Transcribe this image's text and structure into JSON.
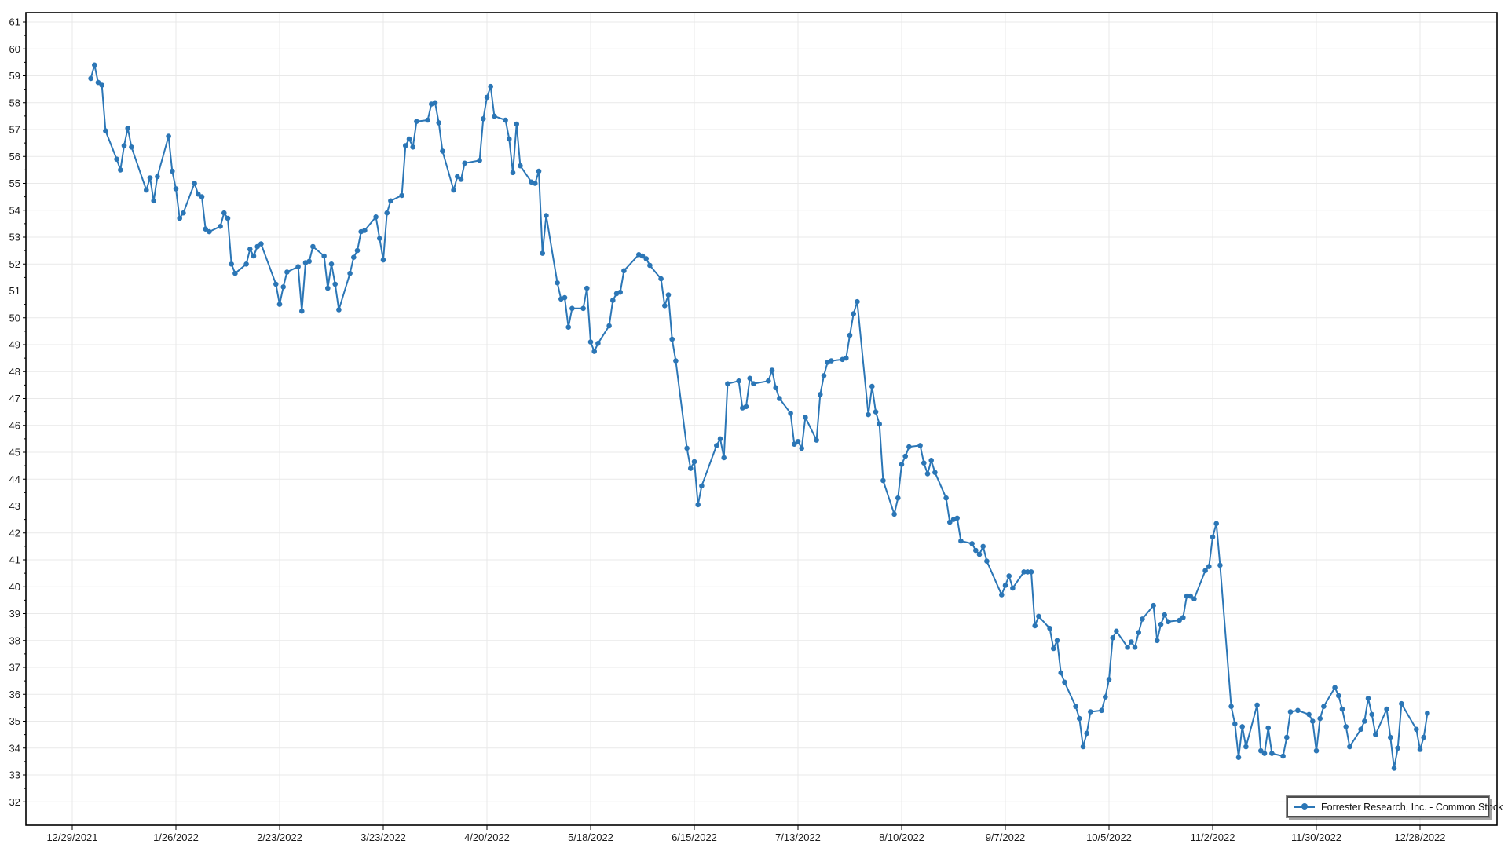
{
  "legend": {
    "label": "Forrester Research, Inc. - Common Stock"
  },
  "colors": {
    "series": "#2b76b6",
    "grid": "#e9e9e9",
    "axis": "#000000",
    "label": "#1a1a1a",
    "background": "#ffffff"
  },
  "chart_data": {
    "type": "line",
    "series": [
      {
        "name": "Forrester Research, Inc. - Common Stock",
        "marker": "circle",
        "color": "#2b76b6",
        "dates": [
          "1/3/2022",
          "1/4/2022",
          "1/5/2022",
          "1/6/2022",
          "1/7/2022",
          "1/10/2022",
          "1/11/2022",
          "1/12/2022",
          "1/13/2022",
          "1/14/2022",
          "1/18/2022",
          "1/19/2022",
          "1/20/2022",
          "1/21/2022",
          "1/24/2022",
          "1/25/2022",
          "1/26/2022",
          "1/27/2022",
          "1/28/2022",
          "1/31/2022",
          "2/1/2022",
          "2/2/2022",
          "2/3/2022",
          "2/4/2022",
          "2/7/2022",
          "2/8/2022",
          "2/9/2022",
          "2/10/2022",
          "2/11/2022",
          "2/14/2022",
          "2/15/2022",
          "2/16/2022",
          "2/17/2022",
          "2/18/2022",
          "2/22/2022",
          "2/23/2022",
          "2/24/2022",
          "2/25/2022",
          "2/28/2022",
          "3/1/2022",
          "3/2/2022",
          "3/3/2022",
          "3/4/2022",
          "3/7/2022",
          "3/8/2022",
          "3/9/2022",
          "3/10/2022",
          "3/11/2022",
          "3/14/2022",
          "3/15/2022",
          "3/16/2022",
          "3/17/2022",
          "3/18/2022",
          "3/21/2022",
          "3/22/2022",
          "3/23/2022",
          "3/24/2022",
          "3/25/2022",
          "3/28/2022",
          "3/29/2022",
          "3/30/2022",
          "3/31/2022",
          "4/1/2022",
          "4/4/2022",
          "4/5/2022",
          "4/6/2022",
          "4/7/2022",
          "4/8/2022",
          "4/11/2022",
          "4/12/2022",
          "4/13/2022",
          "4/14/2022",
          "4/18/2022",
          "4/19/2022",
          "4/20/2022",
          "4/21/2022",
          "4/22/2022",
          "4/25/2022",
          "4/26/2022",
          "4/27/2022",
          "4/28/2022",
          "4/29/2022",
          "5/2/2022",
          "5/3/2022",
          "5/4/2022",
          "5/5/2022",
          "5/6/2022",
          "5/9/2022",
          "5/10/2022",
          "5/11/2022",
          "5/12/2022",
          "5/13/2022",
          "5/16/2022",
          "5/17/2022",
          "5/18/2022",
          "5/19/2022",
          "5/20/2022",
          "5/23/2022",
          "5/24/2022",
          "5/25/2022",
          "5/26/2022",
          "5/27/2022",
          "5/31/2022",
          "6/1/2022",
          "6/2/2022",
          "6/3/2022",
          "6/6/2022",
          "6/7/2022",
          "6/8/2022",
          "6/9/2022",
          "6/10/2022",
          "6/13/2022",
          "6/14/2022",
          "6/15/2022",
          "6/16/2022",
          "6/17/2022",
          "6/21/2022",
          "6/22/2022",
          "6/23/2022",
          "6/24/2022",
          "6/27/2022",
          "6/28/2022",
          "6/29/2022",
          "6/30/2022",
          "7/1/2022",
          "7/5/2022",
          "7/6/2022",
          "7/7/2022",
          "7/8/2022",
          "7/11/2022",
          "7/12/2022",
          "7/13/2022",
          "7/14/2022",
          "7/15/2022",
          "7/18/2022",
          "7/19/2022",
          "7/20/2022",
          "7/21/2022",
          "7/22/2022",
          "7/25/2022",
          "7/26/2022",
          "7/27/2022",
          "7/28/2022",
          "7/29/2022",
          "8/1/2022",
          "8/2/2022",
          "8/3/2022",
          "8/4/2022",
          "8/5/2022",
          "8/8/2022",
          "8/9/2022",
          "8/10/2022",
          "8/11/2022",
          "8/12/2022",
          "8/15/2022",
          "8/16/2022",
          "8/17/2022",
          "8/18/2022",
          "8/19/2022",
          "8/22/2022",
          "8/23/2022",
          "8/24/2022",
          "8/25/2022",
          "8/26/2022",
          "8/29/2022",
          "8/30/2022",
          "8/31/2022",
          "9/1/2022",
          "9/2/2022",
          "9/6/2022",
          "9/7/2022",
          "9/8/2022",
          "9/9/2022",
          "9/12/2022",
          "9/13/2022",
          "9/14/2022",
          "9/15/2022",
          "9/16/2022",
          "9/19/2022",
          "9/20/2022",
          "9/21/2022",
          "9/22/2022",
          "9/23/2022",
          "9/26/2022",
          "9/27/2022",
          "9/28/2022",
          "9/29/2022",
          "9/30/2022",
          "10/3/2022",
          "10/4/2022",
          "10/5/2022",
          "10/6/2022",
          "10/7/2022",
          "10/10/2022",
          "10/11/2022",
          "10/12/2022",
          "10/13/2022",
          "10/14/2022",
          "10/17/2022",
          "10/18/2022",
          "10/19/2022",
          "10/20/2022",
          "10/21/2022",
          "10/24/2022",
          "10/25/2022",
          "10/26/2022",
          "10/27/2022",
          "10/28/2022",
          "10/31/2022",
          "11/1/2022",
          "11/2/2022",
          "11/3/2022",
          "11/4/2022",
          "11/7/2022",
          "11/8/2022",
          "11/9/2022",
          "11/10/2022",
          "11/11/2022",
          "11/14/2022",
          "11/15/2022",
          "11/16/2022",
          "11/17/2022",
          "11/18/2022",
          "11/21/2022",
          "11/22/2022",
          "11/23/2022",
          "11/25/2022",
          "11/28/2022",
          "11/29/2022",
          "11/30/2022",
          "12/1/2022",
          "12/2/2022",
          "12/5/2022",
          "12/6/2022",
          "12/7/2022",
          "12/8/2022",
          "12/9/2022",
          "12/12/2022",
          "12/13/2022",
          "12/14/2022",
          "12/15/2022",
          "12/16/2022",
          "12/19/2022",
          "12/20/2022",
          "12/21/2022",
          "12/22/2022",
          "12/23/2022",
          "12/27/2022",
          "12/28/2022",
          "12/29/2022",
          "12/30/2022"
        ],
        "values": [
          58.9,
          59.4,
          58.75,
          58.65,
          56.95,
          55.9,
          55.5,
          56.4,
          57.05,
          56.35,
          54.75,
          55.2,
          54.35,
          55.25,
          56.75,
          55.45,
          54.8,
          53.7,
          53.9,
          55.0,
          54.6,
          54.5,
          53.3,
          53.2,
          53.4,
          53.9,
          53.7,
          52.0,
          51.65,
          52.0,
          52.55,
          52.3,
          52.65,
          52.75,
          51.25,
          50.5,
          51.15,
          51.7,
          51.9,
          50.25,
          52.05,
          52.1,
          52.65,
          52.3,
          51.1,
          52.0,
          51.25,
          50.3,
          51.65,
          52.25,
          52.5,
          53.2,
          53.25,
          53.75,
          52.95,
          52.15,
          53.9,
          54.35,
          54.55,
          56.4,
          56.65,
          56.35,
          57.3,
          57.35,
          57.95,
          58.0,
          57.25,
          56.2,
          54.75,
          55.25,
          55.15,
          55.75,
          55.85,
          57.4,
          58.2,
          58.6,
          57.5,
          57.35,
          56.65,
          55.4,
          57.2,
          55.65,
          55.05,
          55.0,
          55.45,
          52.4,
          53.8,
          51.3,
          50.7,
          50.75,
          49.65,
          50.35,
          50.35,
          51.1,
          49.1,
          48.75,
          49.05,
          49.7,
          50.65,
          50.9,
          50.95,
          51.75,
          52.35,
          52.3,
          52.2,
          51.95,
          51.45,
          50.45,
          50.85,
          49.2,
          48.4,
          45.15,
          44.4,
          44.65,
          43.05,
          43.75,
          45.25,
          45.5,
          44.8,
          47.55,
          47.65,
          46.65,
          46.7,
          47.75,
          47.55,
          47.65,
          48.05,
          47.4,
          47.0,
          46.45,
          45.3,
          45.4,
          45.15,
          46.3,
          45.45,
          47.15,
          47.85,
          48.35,
          48.4,
          48.45,
          48.5,
          49.35,
          50.15,
          50.6,
          46.4,
          47.45,
          46.5,
          46.05,
          43.95,
          42.7,
          43.3,
          44.55,
          44.85,
          45.2,
          45.25,
          44.6,
          44.2,
          44.7,
          44.25,
          43.3,
          42.4,
          42.5,
          42.55,
          41.7,
          41.6,
          41.35,
          41.2,
          41.5,
          40.95,
          39.7,
          40.05,
          40.4,
          39.95,
          40.55,
          40.55,
          40.55,
          38.55,
          38.9,
          38.45,
          37.7,
          38.0,
          36.8,
          36.45,
          35.55,
          35.1,
          34.05,
          34.55,
          35.35,
          35.4,
          35.9,
          36.55,
          38.1,
          38.35,
          37.75,
          37.95,
          37.75,
          38.3,
          38.8,
          39.3,
          38.0,
          38.6,
          38.95,
          38.7,
          38.75,
          38.85,
          39.65,
          39.65,
          39.55,
          40.6,
          40.75,
          41.85,
          42.35,
          40.8,
          35.55,
          34.9,
          33.65,
          34.8,
          34.05,
          35.6,
          33.9,
          33.8,
          34.75,
          33.8,
          33.7,
          34.4,
          35.35,
          35.4,
          35.25,
          35.0,
          33.9,
          35.1,
          35.55,
          36.25,
          35.95,
          35.45,
          34.8,
          34.05,
          34.7,
          35.0,
          35.85,
          35.25,
          34.5,
          35.45,
          34.4,
          33.25,
          34.0,
          35.65,
          34.7,
          33.95,
          34.4,
          35.3,
          35.65
        ]
      }
    ],
    "x_axis": {
      "start_date": "12/29/2021",
      "tick_interval_days": 28,
      "tick_labels": [
        "12/29/2021",
        "1/26/2022",
        "2/23/2022",
        "3/23/2022",
        "4/20/2022",
        "5/18/2022",
        "6/15/2022",
        "7/13/2022",
        "8/10/2022",
        "9/7/2022",
        "10/5/2022",
        "11/2/2022",
        "11/30/2022",
        "12/28/2022"
      ]
    },
    "y_axis": {
      "min": 32,
      "max": 61,
      "step": 1,
      "tick_labels": [
        "32",
        "33",
        "34",
        "35",
        "36",
        "37",
        "38",
        "39",
        "40",
        "41",
        "42",
        "43",
        "44",
        "45",
        "46",
        "47",
        "48",
        "49",
        "50",
        "51",
        "52",
        "53",
        "54",
        "55",
        "56",
        "57",
        "58",
        "59",
        "60",
        "61"
      ]
    },
    "grid": true,
    "legend_position": "bottom-right",
    "title": ""
  }
}
